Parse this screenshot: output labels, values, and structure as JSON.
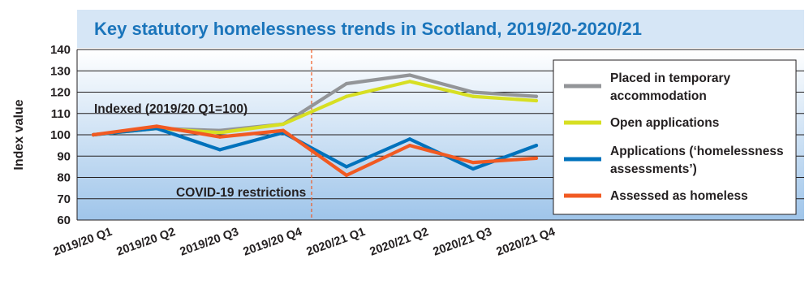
{
  "chart_data": {
    "type": "line",
    "title": "Key statutory homelessness trends in Scotland, 2019/20-2020/21",
    "ylabel": "Index value",
    "xlabel": "",
    "categories": [
      "2019/20 Q1",
      "2019/20 Q2",
      "2019/20 Q3",
      "2019/20 Q4",
      "2020/21 Q1",
      "2020/21 Q2",
      "2020/21 Q3",
      "2020/21 Q4"
    ],
    "ylim": [
      60,
      140
    ],
    "yticks": [
      "60",
      "70",
      "80",
      "90",
      "100",
      "110",
      "120",
      "130",
      "140"
    ],
    "grid": true,
    "legend_position": "right",
    "annotations": {
      "indexed": "Indexed (2019/20 Q1=100)",
      "covid": "COVID-19 restrictions"
    },
    "series": [
      {
        "name": "Placed in temporary accommodation",
        "legend_lines": [
          "Placed in temporary",
          "accommodation"
        ],
        "color": "#939598",
        "values": [
          100,
          103,
          102,
          105,
          124,
          128,
          120,
          118
        ]
      },
      {
        "name": "Open applications",
        "legend_lines": [
          "Open applications"
        ],
        "color": "#d7df23",
        "values": [
          100,
          103,
          101,
          105,
          118,
          125,
          118,
          116
        ]
      },
      {
        "name": "Applications (‘homelessness assessments’)",
        "legend_lines": [
          "Applications (‘homelessness",
          "assessments’)"
        ],
        "color": "#0072bc",
        "values": [
          100,
          103,
          93,
          101,
          85,
          98,
          84,
          95
        ]
      },
      {
        "name": "Assessed as homeless",
        "legend_lines": [
          "Assessed as homeless"
        ],
        "color": "#f15a22",
        "values": [
          100,
          104,
          99,
          102,
          81,
          95,
          87,
          89
        ]
      }
    ]
  }
}
